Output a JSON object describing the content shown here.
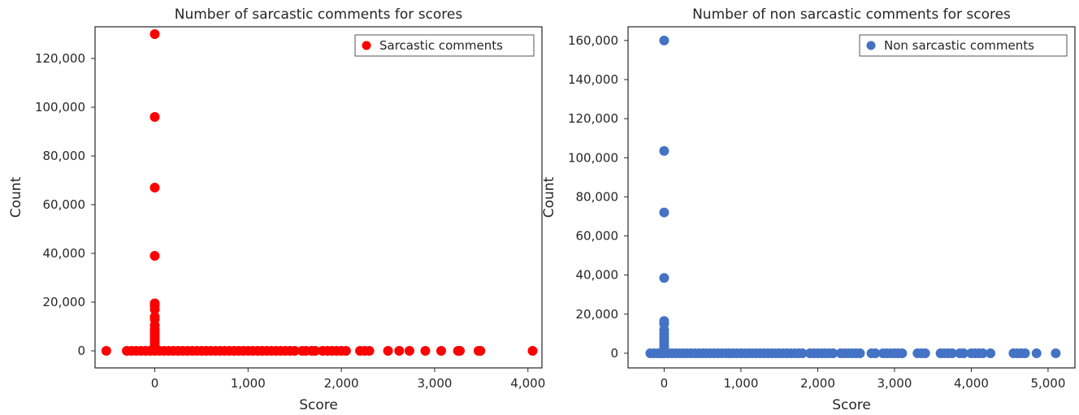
{
  "chart_data": [
    {
      "type": "scatter",
      "title": "Number of sarcastic comments for scores",
      "xlabel": "Score",
      "ylabel": "Count",
      "xlim": [
        -640,
        4150
      ],
      "ylim": [
        -7000,
        133000
      ],
      "xticks": [
        0,
        1000,
        2000,
        3000,
        4000
      ],
      "xtick_labels": [
        "0",
        "1,000",
        "2,000",
        "3,000",
        "4,000"
      ],
      "yticks": [
        0,
        20000,
        40000,
        60000,
        80000,
        100000,
        120000
      ],
      "ytick_labels": [
        "0",
        "20,000",
        "40,000",
        "60,000",
        "80,000",
        "100,000",
        "120,000"
      ],
      "grid": false,
      "legend_position": "top-right",
      "color": "#ff0000",
      "series": [
        {
          "name": "Sarcastic comments",
          "points": [
            [
              0,
              130000
            ],
            [
              0,
              96000
            ],
            [
              0,
              67000
            ],
            [
              0,
              39000
            ],
            [
              0,
              19500
            ],
            [
              0,
              18500
            ],
            [
              0,
              17000
            ],
            [
              0,
              14000
            ],
            [
              0,
              13000
            ],
            [
              0,
              10500
            ],
            [
              0,
              9000
            ],
            [
              0,
              8000
            ],
            [
              0,
              7000
            ],
            [
              0,
              6000
            ],
            [
              0,
              5000
            ],
            [
              0,
              4000
            ],
            [
              0,
              3000
            ],
            [
              0,
              2000
            ],
            [
              0,
              1200
            ],
            [
              -520,
              0
            ],
            [
              -300,
              0
            ],
            [
              -250,
              0
            ],
            [
              -200,
              0
            ],
            [
              -150,
              0
            ],
            [
              -100,
              0
            ],
            [
              -50,
              0
            ],
            [
              0,
              0
            ],
            [
              50,
              0
            ],
            [
              100,
              0
            ],
            [
              150,
              0
            ],
            [
              200,
              0
            ],
            [
              250,
              0
            ],
            [
              300,
              0
            ],
            [
              350,
              0
            ],
            [
              400,
              0
            ],
            [
              450,
              0
            ],
            [
              500,
              0
            ],
            [
              550,
              0
            ],
            [
              600,
              0
            ],
            [
              650,
              0
            ],
            [
              700,
              0
            ],
            [
              750,
              0
            ],
            [
              800,
              0
            ],
            [
              850,
              0
            ],
            [
              900,
              0
            ],
            [
              950,
              0
            ],
            [
              1000,
              0
            ],
            [
              1050,
              0
            ],
            [
              1100,
              0
            ],
            [
              1150,
              0
            ],
            [
              1200,
              0
            ],
            [
              1250,
              0
            ],
            [
              1300,
              0
            ],
            [
              1350,
              0
            ],
            [
              1400,
              0
            ],
            [
              1450,
              0
            ],
            [
              1500,
              0
            ],
            [
              1580,
              0
            ],
            [
              1620,
              0
            ],
            [
              1680,
              0
            ],
            [
              1720,
              0
            ],
            [
              1800,
              0
            ],
            [
              1850,
              0
            ],
            [
              1900,
              0
            ],
            [
              1950,
              0
            ],
            [
              2000,
              0
            ],
            [
              2050,
              0
            ],
            [
              2200,
              0
            ],
            [
              2250,
              0
            ],
            [
              2300,
              0
            ],
            [
              2500,
              0
            ],
            [
              2620,
              0
            ],
            [
              2730,
              0
            ],
            [
              2900,
              0
            ],
            [
              3070,
              0
            ],
            [
              3250,
              0
            ],
            [
              3270,
              0
            ],
            [
              3470,
              0
            ],
            [
              3490,
              0
            ],
            [
              4050,
              0
            ]
          ]
        }
      ]
    },
    {
      "type": "scatter",
      "title": "Number of non sarcastic comments for scores",
      "xlabel": "Score",
      "ylabel": "Count",
      "xlim": [
        -470,
        5350
      ],
      "ylim": [
        -7500,
        167000
      ],
      "xticks": [
        0,
        1000,
        2000,
        3000,
        4000,
        5000
      ],
      "xtick_labels": [
        "0",
        "1,000",
        "2,000",
        "3,000",
        "4,000",
        "5,000"
      ],
      "yticks": [
        0,
        20000,
        40000,
        60000,
        80000,
        100000,
        120000,
        140000,
        160000
      ],
      "ytick_labels": [
        "0",
        "20,000",
        "40,000",
        "60,000",
        "80,000",
        "100,000",
        "120,000",
        "140,000",
        "160,000"
      ],
      "grid": false,
      "legend_position": "top-right",
      "color": "#4472c4",
      "series": [
        {
          "name": "Non sarcastic comments",
          "points": [
            [
              0,
              160000
            ],
            [
              0,
              103500
            ],
            [
              0,
              72000
            ],
            [
              0,
              38500
            ],
            [
              0,
              16500
            ],
            [
              0,
              15000
            ],
            [
              0,
              12000
            ],
            [
              0,
              10000
            ],
            [
              0,
              8500
            ],
            [
              0,
              7000
            ],
            [
              0,
              5500
            ],
            [
              0,
              4000
            ],
            [
              0,
              3000
            ],
            [
              0,
              2000
            ],
            [
              0,
              1000
            ],
            [
              -180,
              0
            ],
            [
              -130,
              0
            ],
            [
              -80,
              0
            ],
            [
              -40,
              0
            ],
            [
              0,
              0
            ],
            [
              50,
              0
            ],
            [
              100,
              0
            ],
            [
              150,
              0
            ],
            [
              200,
              0
            ],
            [
              250,
              0
            ],
            [
              300,
              0
            ],
            [
              350,
              0
            ],
            [
              400,
              0
            ],
            [
              450,
              0
            ],
            [
              500,
              0
            ],
            [
              550,
              0
            ],
            [
              600,
              0
            ],
            [
              650,
              0
            ],
            [
              700,
              0
            ],
            [
              750,
              0
            ],
            [
              800,
              0
            ],
            [
              850,
              0
            ],
            [
              900,
              0
            ],
            [
              950,
              0
            ],
            [
              1000,
              0
            ],
            [
              1050,
              0
            ],
            [
              1100,
              0
            ],
            [
              1150,
              0
            ],
            [
              1200,
              0
            ],
            [
              1250,
              0
            ],
            [
              1300,
              0
            ],
            [
              1350,
              0
            ],
            [
              1400,
              0
            ],
            [
              1450,
              0
            ],
            [
              1500,
              0
            ],
            [
              1550,
              0
            ],
            [
              1600,
              0
            ],
            [
              1650,
              0
            ],
            [
              1700,
              0
            ],
            [
              1750,
              0
            ],
            [
              1800,
              0
            ],
            [
              1900,
              0
            ],
            [
              1950,
              0
            ],
            [
              2000,
              0
            ],
            [
              2050,
              0
            ],
            [
              2100,
              0
            ],
            [
              2150,
              0
            ],
            [
              2200,
              0
            ],
            [
              2300,
              0
            ],
            [
              2350,
              0
            ],
            [
              2400,
              0
            ],
            [
              2450,
              0
            ],
            [
              2500,
              0
            ],
            [
              2550,
              0
            ],
            [
              2700,
              0
            ],
            [
              2750,
              0
            ],
            [
              2850,
              0
            ],
            [
              2900,
              0
            ],
            [
              2950,
              0
            ],
            [
              3000,
              0
            ],
            [
              3050,
              0
            ],
            [
              3100,
              0
            ],
            [
              3300,
              0
            ],
            [
              3350,
              0
            ],
            [
              3400,
              0
            ],
            [
              3600,
              0
            ],
            [
              3650,
              0
            ],
            [
              3700,
              0
            ],
            [
              3750,
              0
            ],
            [
              3850,
              0
            ],
            [
              3900,
              0
            ],
            [
              4000,
              0
            ],
            [
              4050,
              0
            ],
            [
              4100,
              0
            ],
            [
              4150,
              0
            ],
            [
              4250,
              0
            ],
            [
              4550,
              0
            ],
            [
              4600,
              0
            ],
            [
              4650,
              0
            ],
            [
              4700,
              0
            ],
            [
              4850,
              0
            ],
            [
              5100,
              0
            ]
          ]
        }
      ]
    }
  ]
}
